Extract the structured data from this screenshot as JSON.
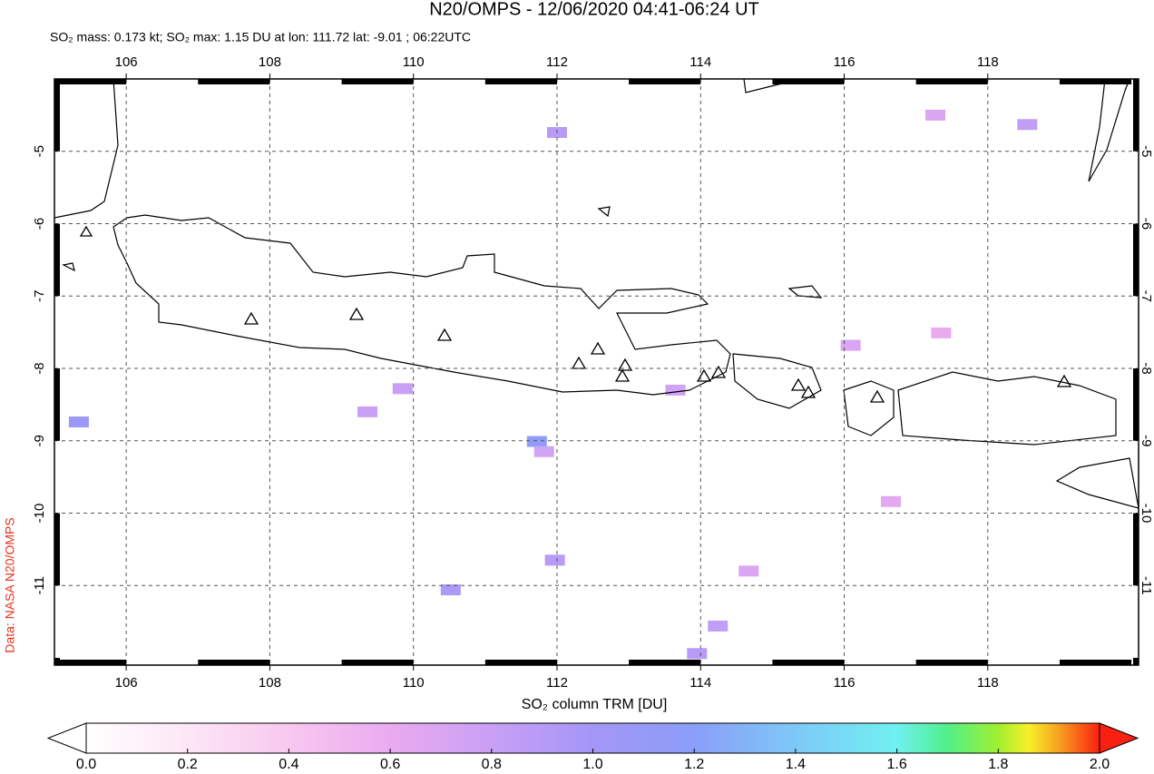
{
  "chart_data": {
    "type": "map",
    "title": "N20/OMPS - 12/06/2020 04:41-06:24 UT",
    "subtitle": "SO₂ mass: 0.173 kt; SO₂ max: 1.15 DU at lon: 111.72 lat: -9.01 ; 06:22UTC",
    "source": "Data: NASA N20/OMPS",
    "colorbar_label": "SO₂ column TRM [DU]",
    "xlim": [
      105,
      120.1
    ],
    "ylim": [
      -12.1,
      -4.0
    ],
    "xticks": [
      106,
      108,
      110,
      112,
      114,
      116,
      118
    ],
    "yticks": [
      -5,
      -6,
      -7,
      -8,
      -9,
      -10,
      -11
    ],
    "grid": true,
    "clim": [
      0,
      2
    ],
    "cticks": [
      {
        "value": 0,
        "label": "0.0"
      },
      {
        "value": 0.2,
        "label": "0.2"
      },
      {
        "value": 0.4,
        "label": "0.4"
      },
      {
        "value": 0.6,
        "label": "0.6"
      },
      {
        "value": 0.8,
        "label": "0.8"
      },
      {
        "value": 1,
        "label": "1.0"
      },
      {
        "value": 1.2,
        "label": "1.2"
      },
      {
        "value": 1.4,
        "label": "1.4"
      },
      {
        "value": 1.6,
        "label": "1.6"
      },
      {
        "value": 1.8,
        "label": "1.8"
      },
      {
        "value": 2,
        "label": "2.0"
      }
    ],
    "pixels": [
      {
        "lon": 111.72,
        "lat": -9.01,
        "value": 1.15
      },
      {
        "lon": 105.34,
        "lat": -8.74,
        "value": 1.05
      },
      {
        "lon": 112.0,
        "lat": -4.74,
        "value": 0.9
      },
      {
        "lon": 118.55,
        "lat": -4.63,
        "value": 0.85
      },
      {
        "lon": 117.27,
        "lat": -4.5,
        "value": 0.7
      },
      {
        "lon": 109.36,
        "lat": -8.6,
        "value": 0.8
      },
      {
        "lon": 111.82,
        "lat": -9.15,
        "value": 0.75
      },
      {
        "lon": 110.52,
        "lat": -11.06,
        "value": 0.95
      },
      {
        "lon": 111.97,
        "lat": -10.65,
        "value": 0.9
      },
      {
        "lon": 114.24,
        "lat": -11.56,
        "value": 0.85
      },
      {
        "lon": 114.67,
        "lat": -10.8,
        "value": 0.7
      },
      {
        "lon": 116.09,
        "lat": -7.68,
        "value": 0.7
      },
      {
        "lon": 116.65,
        "lat": -9.84,
        "value": 0.65
      },
      {
        "lon": 113.65,
        "lat": -8.3,
        "value": 0.75
      },
      {
        "lon": 109.85,
        "lat": -8.28,
        "value": 0.8
      },
      {
        "lon": 113.95,
        "lat": -11.94,
        "value": 0.9
      },
      {
        "lon": 117.35,
        "lat": -7.51,
        "value": 0.6
      }
    ]
  }
}
